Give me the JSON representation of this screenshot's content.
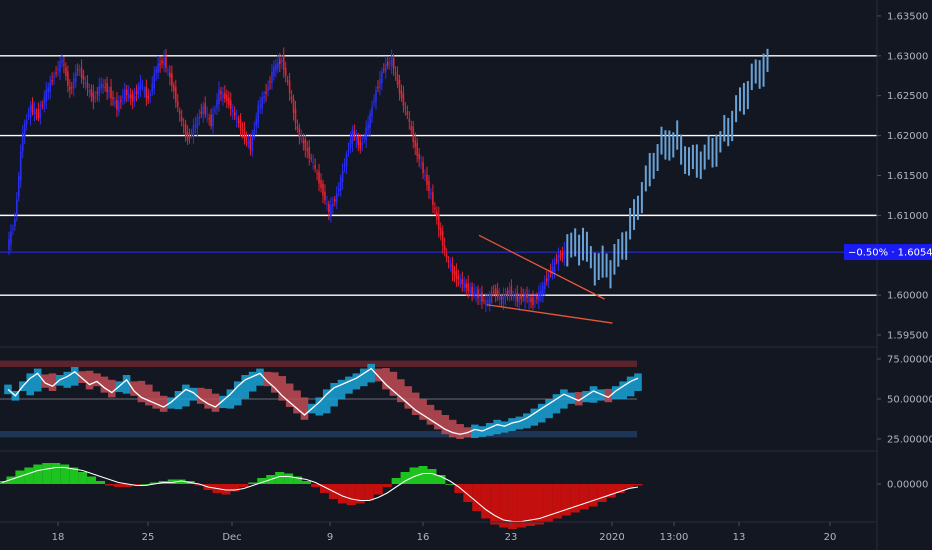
{
  "colors": {
    "background": "#131722",
    "bull_candle": "#2a2ef0",
    "bear_candle": "#e8212e",
    "projection": "#6aa2d6",
    "level_line": "#ffffff",
    "wedge": "#e8573a",
    "current_price_line": "#2a2ef0",
    "current_price_tag": "#1b1bf5",
    "rsi_line": "#ffffff",
    "rsi_bull_fill": "#19a3d6",
    "rsi_bear_fill": "#c24b55",
    "rsi_upper_band": "#6e2730",
    "rsi_lower_band": "#1f3a5c",
    "hist_pos": "#1ec21e",
    "hist_neg": "#c40f0f",
    "osc_line": "#ffffff"
  },
  "chart_data": [
    {
      "type": "candlestick",
      "title": "",
      "x_tick_labels": [
        "18",
        "25",
        "Dec",
        "9",
        "16",
        "23",
        "2020",
        "13:00",
        "13",
        "20"
      ],
      "y_ticks": [
        "1.59500",
        "1.60000",
        "1.60500",
        "1.61000",
        "1.61500",
        "1.62000",
        "1.62500",
        "1.63000",
        "1.63500"
      ],
      "ylim": [
        1.5935,
        1.637
      ],
      "current_price": {
        "value": 1.6054,
        "label": "1.60540",
        "change": "−0.50%"
      },
      "horizontal_levels": [
        1.6,
        1.61,
        1.62,
        1.63
      ],
      "series": [
        {
          "name": "",
          "points": [
            [
              0,
              1.606
            ],
            [
              1,
              1.6095
            ],
            [
              2,
              1.6205
            ],
            [
              3,
              1.6235
            ],
            [
              4,
              1.6225
            ],
            [
              5,
              1.6255
            ],
            [
              6,
              1.6275
            ],
            [
              7,
              1.6295
            ],
            [
              8,
              1.6255
            ],
            [
              9,
              1.6285
            ],
            [
              10,
              1.6265
            ],
            [
              11,
              1.6245
            ],
            [
              12,
              1.6265
            ],
            [
              13,
              1.6255
            ],
            [
              14,
              1.6235
            ],
            [
              15,
              1.6255
            ],
            [
              16,
              1.6245
            ],
            [
              17,
              1.6265
            ],
            [
              18,
              1.6245
            ],
            [
              19,
              1.6285
            ],
            [
              20,
              1.6295
            ],
            [
              21,
              1.6265
            ],
            [
              22,
              1.6225
            ],
            [
              23,
              1.6195
            ],
            [
              24,
              1.6215
            ],
            [
              25,
              1.6235
            ],
            [
              26,
              1.6215
            ],
            [
              27,
              1.6255
            ],
            [
              28,
              1.6245
            ],
            [
              29,
              1.6225
            ],
            [
              30,
              1.6205
            ],
            [
              31,
              1.6185
            ],
            [
              32,
              1.6235
            ],
            [
              33,
              1.6255
            ],
            [
              34,
              1.6285
            ],
            [
              35,
              1.6295
            ],
            [
              36,
              1.6255
            ],
            [
              37,
              1.6205
            ],
            [
              38,
              1.6185
            ],
            [
              39,
              1.6165
            ],
            [
              40,
              1.6135
            ],
            [
              41,
              1.6105
            ],
            [
              42,
              1.6125
            ],
            [
              43,
              1.6165
            ],
            [
              44,
              1.6205
            ],
            [
              45,
              1.6185
            ],
            [
              46,
              1.6215
            ],
            [
              47,
              1.6255
            ],
            [
              48,
              1.6285
            ],
            [
              49,
              1.6295
            ],
            [
              50,
              1.6255
            ],
            [
              51,
              1.6225
            ],
            [
              52,
              1.6185
            ],
            [
              53,
              1.6155
            ],
            [
              54,
              1.6125
            ],
            [
              55,
              1.6085
            ],
            [
              56,
              1.6045
            ],
            [
              57,
              1.6025
            ],
            [
              58,
              1.6015
            ],
            [
              59,
              1.6005
            ],
            [
              60,
              1.6
            ],
            [
              61,
              1.599
            ],
            [
              62,
              1.6005
            ],
            [
              63,
              1.5995
            ],
            [
              64,
              1.6005
            ],
            [
              65,
              1.5995
            ],
            [
              66,
              1.6
            ],
            [
              67,
              1.599
            ],
            [
              68,
              1.6005
            ],
            [
              69,
              1.6025
            ],
            [
              70,
              1.6045
            ],
            [
              71,
              1.6054
            ]
          ]
        },
        {
          "name": "",
          "points": [
            [
              71,
              1.6054
            ],
            [
              73,
              1.6065
            ],
            [
              75,
              1.6035
            ],
            [
              77,
              1.6035
            ],
            [
              79,
              1.6075
            ],
            [
              81,
              1.6135
            ],
            [
              83,
              1.6185
            ],
            [
              85,
              1.6195
            ],
            [
              87,
              1.6165
            ],
            [
              89,
              1.6175
            ],
            [
              91,
              1.6195
            ],
            [
              93,
              1.6235
            ],
            [
              95,
              1.6275
            ],
            [
              97,
              1.6295
            ]
          ]
        }
      ],
      "annotations": [
        {
          "type": "falling-wedge",
          "upper": [
            [
              60,
              1.6075
            ],
            [
              76,
              1.5995
            ]
          ],
          "lower": [
            [
              61,
              1.5988
            ],
            [
              77,
              1.5965
            ]
          ]
        }
      ]
    },
    {
      "type": "line",
      "title": "",
      "y_ticks": [
        "25.00000",
        "50.00000",
        "75.00000"
      ],
      "ylim": [
        20,
        80
      ],
      "bands": {
        "upper": [
          70,
          74
        ],
        "lower": [
          26,
          30
        ],
        "mid": 50
      },
      "series": [
        {
          "name": "",
          "values": [
            56,
            52,
            58,
            63,
            66,
            60,
            58,
            62,
            64,
            67,
            63,
            59,
            61,
            57,
            54,
            58,
            62,
            55,
            51,
            49,
            47,
            45,
            48,
            52,
            56,
            54,
            50,
            47,
            45,
            49,
            53,
            58,
            62,
            64,
            66,
            61,
            57,
            52,
            48,
            44,
            40,
            44,
            48,
            53,
            57,
            59,
            61,
            63,
            66,
            69,
            64,
            59,
            55,
            51,
            47,
            43,
            40,
            37,
            34,
            31,
            29,
            28,
            29,
            31,
            30,
            32,
            34,
            33,
            35,
            36,
            38,
            41,
            44,
            47,
            50,
            53,
            51,
            49,
            52,
            55,
            53,
            51,
            55,
            58,
            61,
            63
          ]
        }
      ]
    },
    {
      "type": "bar",
      "title": "",
      "y_ticks": [
        "0.00000"
      ],
      "zero_level": 0,
      "series": [
        {
          "name": "",
          "values": [
            0.2,
            0.5,
            0.9,
            1.1,
            1.3,
            1.4,
            1.4,
            1.3,
            1.1,
            0.8,
            0.5,
            0.2,
            -0.1,
            -0.2,
            -0.2,
            -0.1,
            0,
            0.1,
            0.2,
            0.3,
            0.3,
            0.2,
            -0.1,
            -0.4,
            -0.6,
            -0.7,
            -0.5,
            -0.2,
            0.1,
            0.4,
            0.6,
            0.8,
            0.7,
            0.5,
            0.2,
            -0.2,
            -0.6,
            -1,
            -1.3,
            -1.4,
            -1.3,
            -1.1,
            -0.7,
            -0.2,
            0.4,
            0.8,
            1.1,
            1.2,
            1,
            0.6,
            0,
            -0.6,
            -1.2,
            -1.8,
            -2.3,
            -2.7,
            -2.9,
            -3,
            -2.9,
            -2.8,
            -2.7,
            -2.5,
            -2.3,
            -2.1,
            -1.9,
            -1.7,
            -1.5,
            -1.2,
            -0.9,
            -0.6,
            -0.3,
            -0.1
          ]
        },
        {
          "name": "",
          "values": [
            0.1,
            0.3,
            0.5,
            0.7,
            0.9,
            1,
            1.1,
            1.1,
            1,
            0.9,
            0.7,
            0.5,
            0.3,
            0.1,
            0,
            -0.1,
            -0.1,
            0,
            0.1,
            0.1,
            0.2,
            0.1,
            0,
            -0.2,
            -0.3,
            -0.4,
            -0.4,
            -0.3,
            -0.1,
            0.1,
            0.3,
            0.5,
            0.5,
            0.4,
            0.3,
            0.1,
            -0.2,
            -0.5,
            -0.8,
            -1,
            -1.1,
            -1.1,
            -0.9,
            -0.6,
            -0.2,
            0.2,
            0.5,
            0.7,
            0.7,
            0.5,
            0.2,
            -0.2,
            -0.7,
            -1.2,
            -1.7,
            -2.1,
            -2.4,
            -2.5,
            -2.5,
            -2.4,
            -2.3,
            -2.1,
            -1.9,
            -1.7,
            -1.5,
            -1.3,
            -1.1,
            -0.9,
            -0.7,
            -0.5,
            -0.3,
            -0.2
          ]
        }
      ]
    }
  ]
}
